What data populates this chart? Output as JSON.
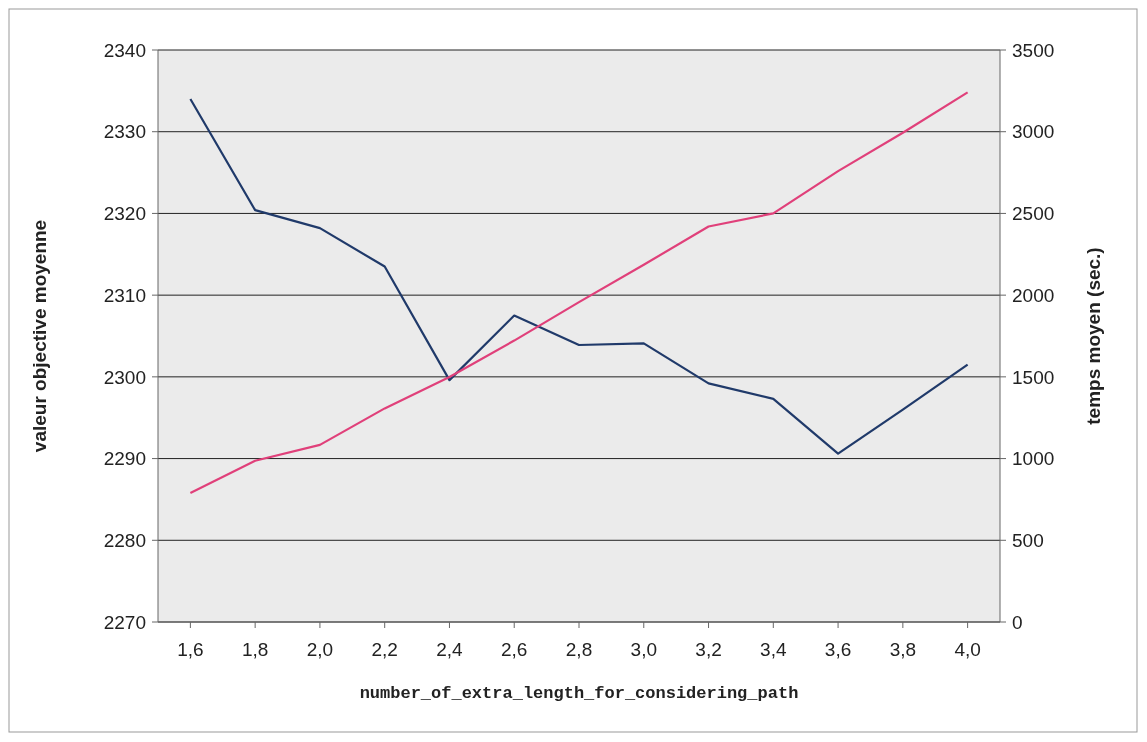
{
  "chart_data": {
    "type": "line",
    "xlabel": "number_of_extra_length_for_considering_path",
    "ylabel": "valeur objective moyenne",
    "y2label": "temps moyen (sec.)",
    "categories": [
      "1,6",
      "1,8",
      "2,0",
      "2,2",
      "2,4",
      "2,6",
      "2,8",
      "3,0",
      "3,2",
      "3,4",
      "3,6",
      "3,8",
      "4,0"
    ],
    "series": [
      {
        "color": "#203a6a",
        "values": [
          2334,
          2320.4,
          2318.2,
          2313.5,
          2299.6,
          2307.5,
          2303.9,
          2304.1,
          2299.2,
          2297.3,
          2290.6,
          2296,
          2301.5
        ]
      },
      {
        "color": "#e0407a",
        "axis": "y2",
        "values": [
          789,
          987,
          1084,
          1307,
          1499,
          1722,
          1957,
          2186,
          2420,
          2500,
          2759,
          2994,
          3241
        ]
      }
    ],
    "ylim": [
      2270,
      2340
    ],
    "yticks": [
      2270,
      2280,
      2290,
      2300,
      2310,
      2320,
      2330,
      2340
    ],
    "y2lim": [
      0,
      3500
    ],
    "y2ticks": [
      0,
      500,
      1000,
      1500,
      2000,
      2500,
      3000,
      3500
    ],
    "grid": "y",
    "marker": "none",
    "line_style": "solid"
  }
}
